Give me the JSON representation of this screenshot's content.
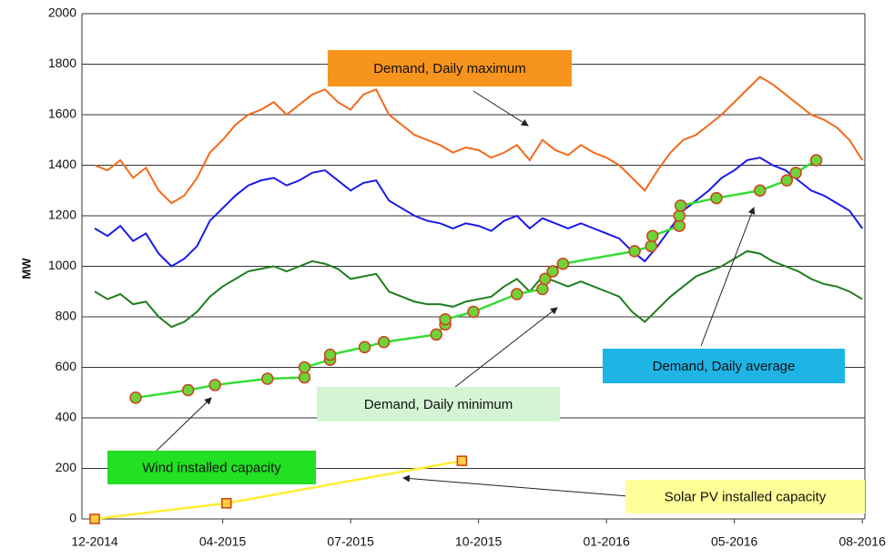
{
  "chart_data": {
    "type": "line",
    "y_label": "MW",
    "ylim": [
      0,
      2000
    ],
    "yticks": [
      0,
      200,
      400,
      600,
      800,
      1000,
      1200,
      1400,
      1600,
      1800,
      2000
    ],
    "xlim": [
      -0.1,
      6.02
    ],
    "xticks": [
      {
        "value": 0,
        "label": "12-2014"
      },
      {
        "value": 1,
        "label": "04-2015"
      },
      {
        "value": 2,
        "label": "07-2015"
      },
      {
        "value": 3,
        "label": "10-2015"
      },
      {
        "value": 4,
        "label": "01-2016"
      },
      {
        "value": 5,
        "label": "05-2016"
      },
      {
        "value": 6,
        "label": "08-2016"
      }
    ],
    "grid": true,
    "series": [
      {
        "name": "Demand, Daily maximum",
        "color": "#f26a1b",
        "label_color": "#f7941d",
        "markers": false,
        "x": [
          0,
          0.1,
          0.2,
          0.3,
          0.4,
          0.5,
          0.6,
          0.7,
          0.8,
          0.9,
          1,
          1.1,
          1.2,
          1.3,
          1.4,
          1.5,
          1.6,
          1.7,
          1.8,
          1.9,
          2,
          2.1,
          2.2,
          2.3,
          2.4,
          2.5,
          2.6,
          2.7,
          2.8,
          2.9,
          3,
          3.1,
          3.2,
          3.3,
          3.4,
          3.5,
          3.6,
          3.7,
          3.8,
          3.9,
          4,
          4.1,
          4.2,
          4.3,
          4.4,
          4.5,
          4.6,
          4.7,
          4.8,
          4.9,
          5,
          5.1,
          5.2,
          5.3,
          5.4,
          5.5,
          5.6,
          5.7,
          5.8,
          5.9,
          6
        ],
        "values": [
          1400,
          1380,
          1420,
          1350,
          1390,
          1300,
          1250,
          1280,
          1350,
          1450,
          1500,
          1560,
          1600,
          1620,
          1650,
          1600,
          1640,
          1680,
          1700,
          1650,
          1620,
          1680,
          1700,
          1600,
          1560,
          1520,
          1500,
          1480,
          1450,
          1470,
          1460,
          1430,
          1450,
          1480,
          1420,
          1500,
          1460,
          1440,
          1480,
          1450,
          1430,
          1400,
          1350,
          1300,
          1380,
          1450,
          1500,
          1520,
          1560,
          1600,
          1650,
          1700,
          1750,
          1720,
          1680,
          1640,
          1600,
          1580,
          1550,
          1500,
          1420
        ]
      },
      {
        "name": "Demand, Daily average",
        "color": "#1a1ae6",
        "label_color": "#1fb4e6",
        "markers": false,
        "x": [
          0,
          0.1,
          0.2,
          0.3,
          0.4,
          0.5,
          0.6,
          0.7,
          0.8,
          0.9,
          1,
          1.1,
          1.2,
          1.3,
          1.4,
          1.5,
          1.6,
          1.7,
          1.8,
          1.9,
          2,
          2.1,
          2.2,
          2.3,
          2.4,
          2.5,
          2.6,
          2.7,
          2.8,
          2.9,
          3,
          3.1,
          3.2,
          3.3,
          3.4,
          3.5,
          3.6,
          3.7,
          3.8,
          3.9,
          4,
          4.1,
          4.2,
          4.3,
          4.4,
          4.5,
          4.6,
          4.7,
          4.8,
          4.9,
          5,
          5.1,
          5.2,
          5.3,
          5.4,
          5.5,
          5.6,
          5.7,
          5.8,
          5.9,
          6
        ],
        "values": [
          1150,
          1120,
          1160,
          1100,
          1130,
          1050,
          1000,
          1030,
          1080,
          1180,
          1230,
          1280,
          1320,
          1340,
          1350,
          1320,
          1340,
          1370,
          1380,
          1340,
          1300,
          1330,
          1340,
          1260,
          1230,
          1200,
          1180,
          1170,
          1150,
          1170,
          1160,
          1140,
          1180,
          1200,
          1150,
          1190,
          1170,
          1150,
          1170,
          1150,
          1130,
          1110,
          1060,
          1020,
          1080,
          1150,
          1220,
          1260,
          1300,
          1350,
          1380,
          1420,
          1430,
          1400,
          1380,
          1340,
          1300,
          1280,
          1250,
          1220,
          1150
        ]
      },
      {
        "name": "Demand, Daily minimum",
        "color": "#1e7d1e",
        "label_color": "#d4f5d4",
        "markers": false,
        "x": [
          0,
          0.1,
          0.2,
          0.3,
          0.4,
          0.5,
          0.6,
          0.7,
          0.8,
          0.9,
          1,
          1.1,
          1.2,
          1.3,
          1.4,
          1.5,
          1.6,
          1.7,
          1.8,
          1.9,
          2,
          2.1,
          2.2,
          2.3,
          2.4,
          2.5,
          2.6,
          2.7,
          2.8,
          2.9,
          3,
          3.1,
          3.2,
          3.3,
          3.4,
          3.5,
          3.6,
          3.7,
          3.8,
          3.9,
          4,
          4.1,
          4.2,
          4.3,
          4.4,
          4.5,
          4.6,
          4.7,
          4.8,
          4.9,
          5,
          5.1,
          5.2,
          5.3,
          5.4,
          5.5,
          5.6,
          5.7,
          5.8,
          5.9,
          6
        ],
        "values": [
          900,
          870,
          890,
          850,
          860,
          800,
          760,
          780,
          820,
          880,
          920,
          950,
          980,
          990,
          1000,
          980,
          1000,
          1020,
          1010,
          990,
          950,
          960,
          970,
          900,
          880,
          860,
          850,
          850,
          840,
          860,
          870,
          880,
          920,
          950,
          900,
          960,
          940,
          920,
          940,
          920,
          900,
          880,
          820,
          780,
          830,
          880,
          920,
          960,
          980,
          1000,
          1030,
          1060,
          1050,
          1020,
          1000,
          980,
          950,
          930,
          920,
          900,
          870
        ]
      },
      {
        "name": "Wind installed capacity",
        "color": "#33dd33",
        "label_color": "#22e022",
        "markers": true,
        "marker_fill": "#6ed23a",
        "marker_stroke": "#d04020",
        "x": [
          0.32,
          0.73,
          0.94,
          1.35,
          1.64,
          1.64,
          1.84,
          1.84,
          2.11,
          2.26,
          2.67,
          2.74,
          2.74,
          2.96,
          3.3,
          3.5,
          3.52,
          3.58,
          3.66,
          4.22,
          4.35,
          4.36,
          4.57,
          4.57,
          4.58,
          4.86,
          5.2,
          5.41,
          5.48,
          5.64
        ],
        "values": [
          480,
          510,
          530,
          555,
          560,
          600,
          630,
          650,
          680,
          700,
          730,
          770,
          790,
          820,
          890,
          910,
          950,
          980,
          1010,
          1060,
          1080,
          1120,
          1160,
          1200,
          1240,
          1270,
          1300,
          1340,
          1370,
          1420
        ]
      },
      {
        "name": "Solar PV installed capacity",
        "color": "#ffee33",
        "label_color": "#ffff99",
        "markers": true,
        "marker_fill": "#ffcc44",
        "marker_stroke": "#cc4400",
        "x": [
          0,
          1.03,
          2.87
        ],
        "values": [
          0,
          62,
          230
        ]
      }
    ]
  }
}
